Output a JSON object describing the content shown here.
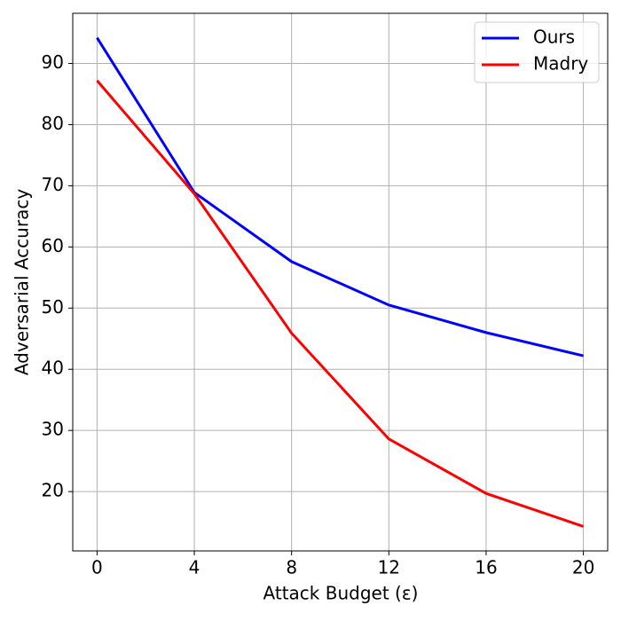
{
  "chart_data": {
    "type": "line",
    "x": [
      0,
      4,
      8,
      12,
      16,
      20
    ],
    "series": [
      {
        "name": "Ours",
        "color": "#0000ff",
        "values": [
          94.2,
          68.9,
          57.6,
          50.5,
          46.0,
          42.2
        ]
      },
      {
        "name": "Madry",
        "color": "#ff0000",
        "values": [
          87.2,
          68.7,
          45.9,
          28.6,
          19.7,
          14.3
        ]
      }
    ],
    "xlabel": "Attack Budget (ε)",
    "ylabel": "Adversarial Accuracy",
    "xlim": [
      -1,
      21
    ],
    "xticks": [
      0,
      4,
      8,
      12,
      16,
      20
    ],
    "ylim": [
      10.3,
      98.2
    ],
    "yticks": [
      20,
      30,
      40,
      50,
      60,
      70,
      80,
      90
    ],
    "grid": true,
    "legend": "upper right"
  }
}
